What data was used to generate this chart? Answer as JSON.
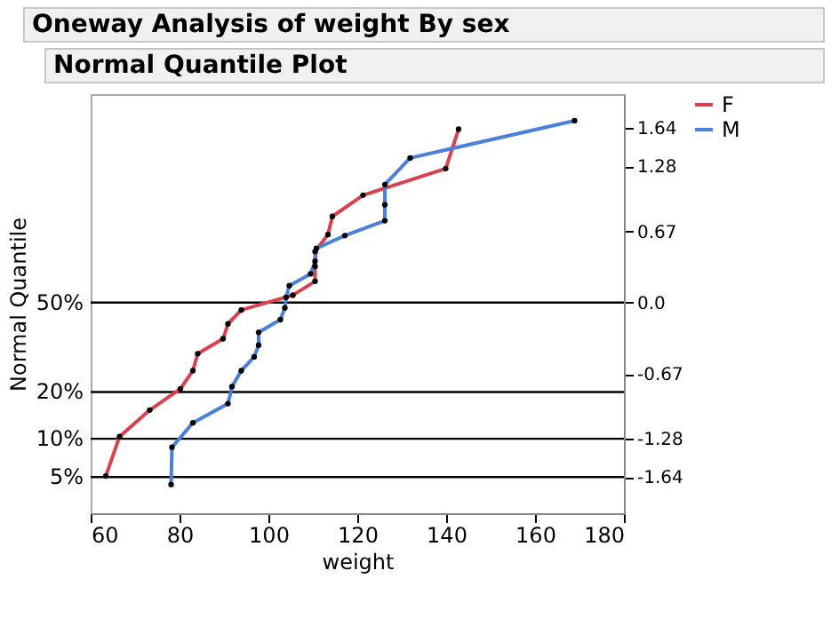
{
  "chart_data": {
    "type": "line",
    "title": "Oneway Analysis of weight By sex",
    "subtitle": "Normal Quantile Plot",
    "xlabel": "weight",
    "ylabel": "Normal Quantile",
    "series": [
      {
        "name": "F",
        "color": "#d9414c",
        "x": [
          63.4,
          66.5,
          73.3,
          80.2,
          83.0,
          84.1,
          89.8,
          90.9,
          93.9,
          105.5,
          110.5,
          110.5,
          110.5,
          113.4,
          114.4,
          121.3,
          139.9,
          142.8
        ],
        "values": [
          -1.63,
          -1.26,
          -1.01,
          -0.81,
          -0.64,
          -0.48,
          -0.34,
          -0.2,
          -0.07,
          0.07,
          0.2,
          0.34,
          0.48,
          0.64,
          0.81,
          1.01,
          1.26,
          1.63
        ]
      },
      {
        "name": "M",
        "color": "#4a7fdb",
        "x": [
          78.1,
          78.3,
          83.0,
          90.9,
          91.8,
          93.9,
          96.8,
          97.8,
          97.8,
          102.7,
          103.7,
          104.0,
          104.7,
          109.5,
          110.5,
          110.8,
          117.2,
          126.2,
          126.2,
          126.2,
          131.9,
          168.9
        ],
        "values": [
          -1.71,
          -1.36,
          -1.13,
          -0.95,
          -0.79,
          -0.64,
          -0.51,
          -0.4,
          -0.28,
          -0.16,
          -0.05,
          0.05,
          0.16,
          0.27,
          0.39,
          0.51,
          0.63,
          0.77,
          0.92,
          1.11,
          1.36,
          1.71
        ]
      }
    ],
    "xlim": [
      60,
      180
    ],
    "xticks": [
      60,
      80,
      100,
      120,
      140,
      160,
      180
    ],
    "ylim": [
      -1.98,
      1.96
    ],
    "yticks": [
      -1.64,
      -1.28,
      -0.67,
      {
        "value": 0,
        "label": "0.0"
      },
      0.67,
      1.28,
      1.64
    ],
    "ref_lines": [
      {
        "axis": "y",
        "value": -1.64
      },
      {
        "axis": "y",
        "value": -1.28
      },
      {
        "axis": "y",
        "value": -0.84
      },
      {
        "axis": "y",
        "value": 0
      }
    ],
    "annotations": [
      "5%",
      "10%",
      "20%",
      "50%"
    ],
    "legend": "top right",
    "marker": "circle",
    "line_style": "solid"
  }
}
